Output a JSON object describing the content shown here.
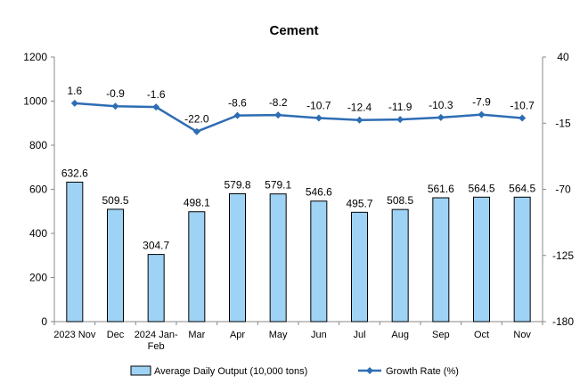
{
  "chart_data": {
    "type": "bar",
    "title": "Cement",
    "categories": [
      [
        "2023 Nov"
      ],
      [
        "Dec"
      ],
      [
        "2024 Jan-",
        "Feb"
      ],
      [
        "Mar"
      ],
      [
        "Apr"
      ],
      [
        "May"
      ],
      [
        "Jun"
      ],
      [
        "Jul"
      ],
      [
        "Aug"
      ],
      [
        "Sep"
      ],
      [
        "Oct"
      ],
      [
        "Nov"
      ]
    ],
    "series": [
      {
        "name": "Average Daily Output (10,000 tons)",
        "type": "bar",
        "axis": "left",
        "color": "#9fd3f5",
        "values": [
          632.6,
          509.5,
          304.7,
          498.1,
          579.8,
          579.1,
          546.6,
          495.7,
          508.5,
          561.6,
          564.5,
          564.5
        ],
        "labels": [
          "632.6",
          "509.5",
          "304.7",
          "498.1",
          "579.8",
          "579.1",
          "546.6",
          "495.7",
          "508.5",
          "561.6",
          "564.5",
          "564.5"
        ]
      },
      {
        "name": "Growth Rate (%)",
        "type": "line",
        "axis": "right",
        "color": "#2e6db4",
        "values": [
          1.6,
          -0.9,
          -1.6,
          -22.0,
          -8.6,
          -8.2,
          -10.7,
          -12.4,
          -11.9,
          -10.3,
          -7.9,
          -10.7
        ],
        "labels": [
          "1.6",
          "-0.9",
          "-1.6",
          "-22.0",
          "-8.6",
          "-8.2",
          "-10.7",
          "-12.4",
          "-11.9",
          "-10.3",
          "-7.9",
          "-10.7"
        ]
      }
    ],
    "y_left": {
      "min": 0,
      "max": 1200,
      "ticks": [
        "0",
        "200",
        "400",
        "600",
        "800",
        "1000",
        "1200"
      ]
    },
    "y_right": {
      "min": -180,
      "max": 40,
      "ticks": [
        "-180",
        "-125",
        "-70",
        "-15",
        "40"
      ]
    },
    "grid": false,
    "legend_position": "bottom"
  }
}
